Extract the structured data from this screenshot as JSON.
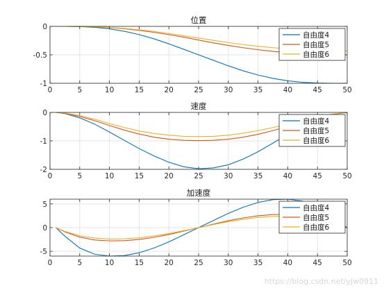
{
  "chart_data": [
    {
      "type": "line",
      "title": "位置",
      "xlabel": "",
      "ylabel": "",
      "xlim": [
        0,
        50
      ],
      "ylim": [
        -1,
        0
      ],
      "xticks": [
        0,
        5,
        10,
        15,
        20,
        25,
        30,
        35,
        40,
        45,
        50
      ],
      "yticks": [
        0,
        -0.5,
        -1
      ],
      "ytick_labels": [
        "0",
        "-0.5",
        "-1"
      ],
      "grid": true,
      "legend_position": "top-right",
      "x": [
        1,
        2.5,
        5,
        7.5,
        10,
        12.5,
        15,
        17.5,
        20,
        22.5,
        25,
        27.5,
        30,
        32.5,
        35,
        37.5,
        40,
        42.5,
        45,
        47.5,
        50
      ],
      "series": [
        {
          "name": "自由度4",
          "color": "#0072BD",
          "values": [
            0,
            0,
            -0.004,
            -0.017,
            -0.043,
            -0.086,
            -0.145,
            -0.219,
            -0.307,
            -0.403,
            -0.5,
            -0.597,
            -0.693,
            -0.781,
            -0.855,
            -0.914,
            -0.957,
            -0.983,
            -0.996,
            -1,
            -1
          ]
        },
        {
          "name": "自由度5",
          "color": "#D95319",
          "values": [
            0,
            0,
            -0.002,
            -0.008,
            -0.021,
            -0.042,
            -0.07,
            -0.105,
            -0.145,
            -0.19,
            -0.24,
            -0.29,
            -0.335,
            -0.375,
            -0.41,
            -0.44,
            -0.463,
            -0.48,
            -0.492,
            -0.498,
            -0.5
          ]
        },
        {
          "name": "自由度6",
          "color": "#EDB120",
          "values": [
            0,
            0,
            -0.002,
            -0.007,
            -0.018,
            -0.036,
            -0.06,
            -0.09,
            -0.125,
            -0.165,
            -0.205,
            -0.245,
            -0.285,
            -0.32,
            -0.35,
            -0.375,
            -0.395,
            -0.41,
            -0.42,
            -0.428,
            -0.43
          ]
        }
      ]
    },
    {
      "type": "line",
      "title": "速度",
      "xlabel": "",
      "ylabel": "",
      "xlim": [
        0,
        50
      ],
      "ylim": [
        -2,
        0
      ],
      "xticks": [
        0,
        5,
        10,
        15,
        20,
        25,
        30,
        35,
        40,
        45,
        50
      ],
      "yticks": [
        0,
        -1,
        -2
      ],
      "ytick_labels": [
        "0",
        "-1",
        "-2"
      ],
      "grid": true,
      "legend_position": "top-right",
      "x": [
        1,
        2.5,
        5,
        7.5,
        10,
        12.5,
        15,
        17.5,
        20,
        22.5,
        25,
        27.5,
        30,
        32.5,
        35,
        37.5,
        40,
        42.5,
        45,
        47.5,
        50
      ],
      "series": [
        {
          "name": "自由度4",
          "color": "#0072BD",
          "values": [
            0,
            -0.04,
            -0.19,
            -0.41,
            -0.69,
            -0.98,
            -1.27,
            -1.53,
            -1.75,
            -1.91,
            -1.98,
            -1.95,
            -1.84,
            -1.64,
            -1.38,
            -1.08,
            -0.77,
            -0.48,
            -0.24,
            -0.07,
            0
          ]
        },
        {
          "name": "自由度5",
          "color": "#D95319",
          "values": [
            0,
            -0.03,
            -0.14,
            -0.29,
            -0.46,
            -0.62,
            -0.76,
            -0.87,
            -0.94,
            -0.98,
            -0.99,
            -0.98,
            -0.94,
            -0.87,
            -0.77,
            -0.64,
            -0.49,
            -0.34,
            -0.19,
            -0.07,
            0
          ]
        },
        {
          "name": "自由度6",
          "color": "#EDB120",
          "values": [
            0,
            -0.02,
            -0.11,
            -0.24,
            -0.39,
            -0.53,
            -0.65,
            -0.74,
            -0.8,
            -0.84,
            -0.85,
            -0.84,
            -0.8,
            -0.73,
            -0.64,
            -0.53,
            -0.41,
            -0.28,
            -0.16,
            -0.06,
            0
          ]
        }
      ]
    },
    {
      "type": "line",
      "title": "加速度",
      "xlabel": "",
      "ylabel": "",
      "xlim": [
        0,
        50
      ],
      "ylim": [
        -6,
        6
      ],
      "xticks": [
        0,
        5,
        10,
        15,
        20,
        25,
        30,
        35,
        40,
        45,
        50
      ],
      "yticks": [
        5,
        0,
        -5
      ],
      "ytick_labels": [
        "5",
        "0",
        "-5"
      ],
      "grid": true,
      "legend_position": "top-right",
      "x": [
        1,
        2.5,
        5,
        7.5,
        10,
        12.5,
        15,
        17.5,
        20,
        22.5,
        25,
        27.5,
        30,
        32.5,
        35,
        37.5,
        40,
        42.5,
        45,
        47.5,
        50
      ],
      "series": [
        {
          "name": "自由度4",
          "color": "#0072BD",
          "values": [
            0,
            -1.8,
            -4.3,
            -5.6,
            -6.0,
            -5.9,
            -5.3,
            -4.3,
            -3.0,
            -1.5,
            0,
            1.5,
            3.0,
            4.3,
            5.3,
            5.9,
            6.0,
            5.6,
            4.3,
            2.2,
            0
          ]
        },
        {
          "name": "自由度5",
          "color": "#D95319",
          "values": [
            0,
            -0.9,
            -2.0,
            -2.6,
            -2.8,
            -2.75,
            -2.5,
            -2.05,
            -1.45,
            -0.75,
            0,
            0.75,
            1.45,
            2.05,
            2.5,
            2.75,
            2.8,
            2.6,
            2.0,
            1.0,
            0
          ]
        },
        {
          "name": "自由度6",
          "color": "#EDB120",
          "values": [
            0,
            -0.8,
            -1.7,
            -2.2,
            -2.4,
            -2.35,
            -2.15,
            -1.75,
            -1.25,
            -0.65,
            0,
            0.65,
            1.25,
            1.75,
            2.15,
            2.35,
            2.4,
            2.2,
            1.7,
            0.9,
            0
          ]
        }
      ]
    }
  ],
  "watermark": "https://blog.csdn.net/yjw0911"
}
